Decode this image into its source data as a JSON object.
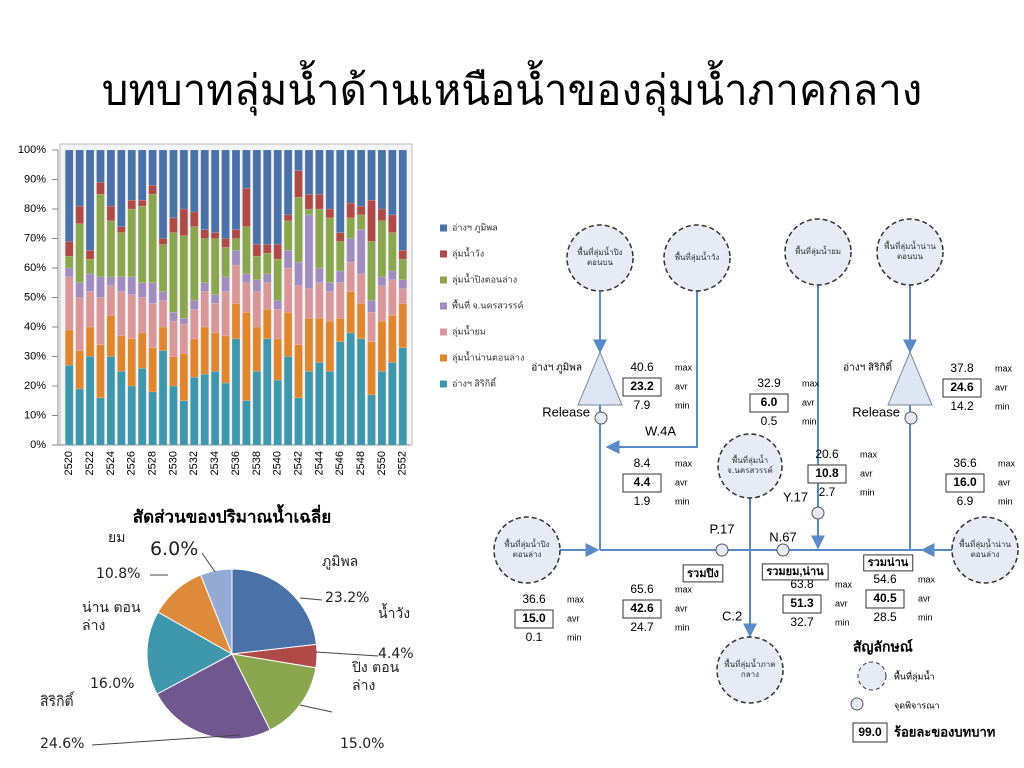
{
  "title": "บทบาทลุ่มน้ำด้านเหนือน้ำของลุ่มน้ำภาคกลาง",
  "chart_data": [
    {
      "type": "bar",
      "stacked": true,
      "categories": [
        "2520",
        null,
        "2522",
        null,
        "2524",
        null,
        "2526",
        null,
        "2528",
        null,
        "2530",
        null,
        "2532",
        null,
        "2534",
        null,
        "2536",
        null,
        "2538",
        null,
        "2540",
        null,
        "2542",
        null,
        "2544",
        null,
        "2546",
        null,
        "2548",
        null,
        "2550",
        null,
        "2552"
      ],
      "series": [
        {
          "name": "อ่างฯ ภูมิพล",
          "color": "#4a72a8",
          "values": [
            31,
            19,
            34,
            11,
            19,
            26,
            17,
            17,
            12,
            30,
            23,
            20,
            21,
            27,
            28,
            30,
            27,
            13,
            32,
            32,
            32,
            22,
            7,
            15,
            15,
            20,
            28,
            18,
            19,
            17,
            20,
            22,
            34
          ]
        },
        {
          "name": "ลุ่มน้ำวัง",
          "color": "#b04a46",
          "values": [
            5,
            6,
            3,
            4,
            5,
            2,
            3,
            2,
            3,
            2,
            5,
            9,
            5,
            3,
            2,
            3,
            3,
            13,
            4,
            3,
            5,
            2,
            9,
            5,
            5,
            3,
            3,
            5,
            3,
            14,
            4,
            6,
            3
          ]
        },
        {
          "name": "ลุ่มน้ำปิงตอนล่าง",
          "color": "#8aa64e",
          "values": [
            4,
            20,
            5,
            28,
            19,
            15,
            23,
            26,
            30,
            16,
            27,
            28,
            25,
            15,
            19,
            10,
            4,
            16,
            8,
            7,
            14,
            10,
            22,
            2,
            20,
            22,
            10,
            7,
            5,
            20,
            19,
            13,
            7
          ]
        },
        {
          "name": "พื้นที่ จ.นครสวรรค์",
          "color": "#a08cbe",
          "values": [
            3,
            5,
            6,
            7,
            3,
            5,
            6,
            5,
            7,
            3,
            3,
            2,
            3,
            3,
            3,
            5,
            5,
            3,
            4,
            3,
            3,
            6,
            8,
            25,
            5,
            3,
            4,
            8,
            15,
            4,
            3,
            3,
            3
          ]
        },
        {
          "name": "ลุ่มน้ำยม",
          "color": "#d9979a",
          "values": [
            18,
            18,
            12,
            16,
            10,
            15,
            15,
            12,
            15,
            9,
            12,
            10,
            10,
            12,
            10,
            15,
            13,
            10,
            12,
            9,
            10,
            15,
            20,
            10,
            12,
            10,
            12,
            10,
            10,
            10,
            12,
            12,
            5
          ]
        },
        {
          "name": "ลุ่มน้ำน่านตอนล่าง",
          "color": "#e0862f",
          "values": [
            12,
            13,
            10,
            18,
            14,
            12,
            16,
            12,
            15,
            8,
            10,
            16,
            13,
            16,
            13,
            16,
            12,
            30,
            15,
            10,
            14,
            15,
            18,
            18,
            15,
            17,
            8,
            14,
            12,
            18,
            17,
            16,
            15
          ]
        },
        {
          "name": "อ่างฯ สิริกิติ์",
          "color": "#3e97ad",
          "values": [
            27,
            19,
            30,
            16,
            30,
            25,
            20,
            26,
            18,
            32,
            20,
            15,
            23,
            24,
            25,
            21,
            36,
            15,
            25,
            36,
            22,
            30,
            16,
            25,
            28,
            25,
            35,
            38,
            36,
            17,
            25,
            28,
            33
          ]
        }
      ],
      "ylim": [
        0,
        100
      ],
      "yticks": [
        {
          "value": 0,
          "label": "0%"
        },
        {
          "value": 10,
          "label": "10%"
        },
        {
          "value": 20,
          "label": "20%"
        },
        {
          "value": 30,
          "label": "30%"
        },
        {
          "value": 40,
          "label": "40%"
        },
        {
          "value": 50,
          "label": "50%"
        },
        {
          "value": 60,
          "label": "60%"
        },
        {
          "value": 70,
          "label": "70%"
        },
        {
          "value": 80,
          "label": "80%"
        },
        {
          "value": 90,
          "label": "90%"
        },
        {
          "value": 100,
          "label": "100%"
        }
      ],
      "grid": false,
      "legend": "right"
    },
    {
      "type": "pie",
      "title": "สัดส่วนของปริมาณน้ำเฉลี่ย",
      "categories": [
        "ภูมิพล",
        "น้ำวัง",
        "ปิง ตอนล่าง",
        "สิริกิติ์",
        "น่าน ตอนล่าง",
        "ยม",
        null
      ],
      "values": [
        23.2,
        4.4,
        15.0,
        24.6,
        16.0,
        10.8,
        6.0
      ],
      "value_labels": [
        "23.2%",
        "4.4%",
        "15.0%",
        "24.6%",
        "16.0%",
        "10.8%",
        "6.0%"
      ],
      "colors": [
        "#4a72a8",
        "#b04a46",
        "#8aa64e",
        "#71578f",
        "#3e97ad",
        "#dd8a3a",
        "#95abd3"
      ]
    }
  ],
  "diagram": {
    "nodes": [
      "พื้นที่ลุ่มน้ำปิงตอนบน",
      "พื้นที่ลุ่มน้ำวัง",
      "พื้นที่ลุ่มน้ำยม",
      "พื้นที่ลุ่มน้ำน่านตอนบน",
      "พื้นที่ลุ่มน้ำ จ.นครสวรรค์",
      "พื้นที่ลุ่มน้ำปิงตอนล่าง",
      "พื้นที่ลุ่มน้ำน่านตอนล่าง",
      "พื้นที่ลุ่มน้ำภาคกลาง"
    ],
    "dams": [
      "อ่างฯ ภูมิพล",
      "อ่างฯ สิริกิติ์"
    ],
    "stations": [
      "Release",
      "Release",
      "W.4A",
      "Y.17",
      "P.17",
      "N.67",
      "C.2"
    ],
    "totals": [
      "รวมปิง",
      "รวมยม,น่าน",
      "รวมน่าน"
    ],
    "stat_labels": [
      "max",
      "avr",
      "min"
    ],
    "stats": [
      {
        "max": "40.6",
        "avr": "23.2",
        "min": "7.9"
      },
      {
        "max": "32.9",
        "avr": "6.0",
        "min": "0.5"
      },
      {
        "max": "8.4",
        "avr": "4.4",
        "min": "1.9"
      },
      {
        "max": "20.6",
        "avr": "10.8",
        "min": "2.7"
      },
      {
        "max": "37.8",
        "avr": "24.6",
        "min": "14.2"
      },
      {
        "max": "36.6",
        "avr": "16.0",
        "min": "6.9"
      },
      {
        "max": "36.6",
        "avr": "15.0",
        "min": "0.1"
      },
      {
        "max": "65.6",
        "avr": "42.6",
        "min": "24.7"
      },
      {
        "max": "63.8",
        "avr": "51.3",
        "min": "32.7"
      },
      {
        "max": "54.6",
        "avr": "40.5",
        "min": "28.5"
      }
    ],
    "legend": {
      "title": "สัญลักษณ์",
      "area": "พื้นที่ลุ่มน้ำ",
      "point": "จุดพิจารณา",
      "sample": "99.0",
      "meaning": "ร้อยละของบทบาท"
    }
  }
}
